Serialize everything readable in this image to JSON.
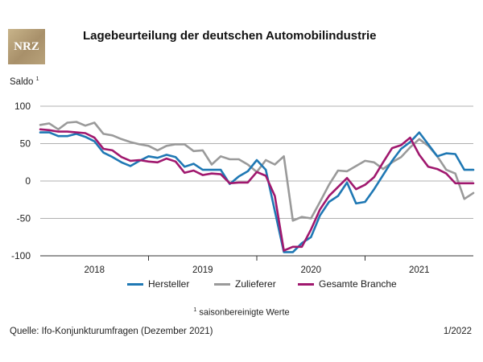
{
  "logo": {
    "text": "NRZ"
  },
  "chart_data": {
    "type": "line",
    "title": "Lagebeurteilung der deutschen Automobilindustrie",
    "ylabel": "Saldo",
    "ylabel_sup": "1",
    "ylim": [
      -100,
      100
    ],
    "yticks": [
      100,
      50,
      0,
      -50,
      -100
    ],
    "xlim": [
      0,
      48
    ],
    "years": [
      {
        "label": "2018",
        "mid": 6
      },
      {
        "label": "2019",
        "mid": 18
      },
      {
        "label": "2020",
        "mid": 30
      },
      {
        "label": "2021",
        "mid": 42
      }
    ],
    "year_separators": [
      12,
      24,
      36
    ],
    "series": [
      {
        "name": "Zulieferer",
        "color": "#9a9a9a",
        "values": [
          75,
          77,
          69,
          78,
          79,
          74,
          78,
          63,
          61,
          56,
          52,
          49,
          47,
          41,
          47,
          49,
          49,
          40,
          41,
          22,
          33,
          29,
          29,
          22,
          12,
          28,
          22,
          33,
          -53,
          -48,
          -50,
          -28,
          -5,
          14,
          13,
          20,
          27,
          25,
          16,
          25,
          32,
          45,
          56,
          47,
          33,
          15,
          10,
          -24,
          -16
        ]
      },
      {
        "name": "Hersteller",
        "color": "#1f78b4",
        "values": [
          65,
          65,
          60,
          60,
          63,
          59,
          53,
          38,
          32,
          25,
          20,
          27,
          33,
          31,
          35,
          32,
          19,
          23,
          15,
          15,
          15,
          -4,
          6,
          13,
          28,
          15,
          -40,
          -95,
          -95,
          -83,
          -75,
          -46,
          -28,
          -20,
          -2,
          -30,
          -28,
          -11,
          8,
          27,
          43,
          52,
          65,
          49,
          33,
          37,
          36,
          15,
          15
        ]
      },
      {
        "name": "Gesamte Branche",
        "color": "#a0186e",
        "values": [
          69,
          68,
          66,
          66,
          65,
          64,
          58,
          43,
          41,
          32,
          27,
          28,
          26,
          25,
          30,
          26,
          11,
          14,
          8,
          10,
          9,
          -3,
          -2,
          -2,
          12,
          7,
          -20,
          -93,
          -88,
          -88,
          -65,
          -38,
          -20,
          -8,
          4,
          -11,
          -5,
          5,
          25,
          44,
          48,
          58,
          35,
          19,
          16,
          10,
          -3,
          -3,
          -3
        ]
      }
    ],
    "legend": [
      "Hersteller",
      "Zulieferer",
      "Gesamte Branche"
    ],
    "legend_position": "bottom"
  },
  "footnote": {
    "sup": "1",
    "text": "saisonbereinigte Werte"
  },
  "source": "Quelle: Ifo-Konjunkturumfragen (Dezember 2021)",
  "issue": "1/2022"
}
